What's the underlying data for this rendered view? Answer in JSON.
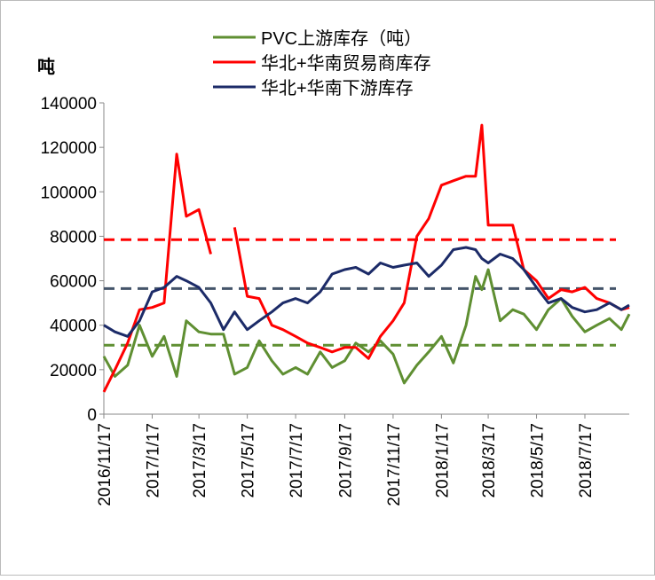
{
  "chart_data": {
    "type": "line",
    "y_label": "吨",
    "x": [
      "2016/11/17",
      "2016/12/1",
      "2016/12/17",
      "2017/1/1",
      "2017/1/17",
      "2017/2/1",
      "2017/2/17",
      "2017/3/1",
      "2017/3/17",
      "2017/4/1",
      "2017/4/17",
      "2017/5/1",
      "2017/5/17",
      "2017/6/1",
      "2017/6/17",
      "2017/7/1",
      "2017/7/17",
      "2017/8/1",
      "2017/8/17",
      "2017/9/1",
      "2017/9/17",
      "2017/10/1",
      "2017/10/17",
      "2017/11/1",
      "2017/11/17",
      "2017/12/1",
      "2017/12/17",
      "2018/1/1",
      "2018/1/17",
      "2018/2/1",
      "2018/2/17",
      "2018/3/1",
      "2018/3/9",
      "2018/3/17",
      "2018/4/1",
      "2018/4/17",
      "2018/5/1",
      "2018/5/17",
      "2018/6/1",
      "2018/6/17",
      "2018/7/1",
      "2018/7/17",
      "2018/8/1",
      "2018/8/17",
      "2018/9/1",
      "2018/9/11"
    ],
    "series": [
      {
        "name": "PVC上游库存（吨）",
        "color": "#5f8f32",
        "values": [
          26000,
          17000,
          22000,
          40000,
          26000,
          35000,
          17000,
          42000,
          37000,
          36000,
          36000,
          18000,
          21000,
          33000,
          24000,
          18000,
          21000,
          18000,
          28000,
          21000,
          24000,
          32000,
          28000,
          33000,
          27000,
          14000,
          22000,
          28000,
          35000,
          23000,
          40000,
          62000,
          56000,
          65000,
          42000,
          47000,
          45000,
          38000,
          47000,
          52000,
          44000,
          37000,
          40000,
          43000,
          38000,
          45000
        ]
      },
      {
        "name": "华北+华南贸易商库存",
        "color": "#ff0000",
        "values": [
          10000,
          20000,
          32000,
          47000,
          48000,
          50000,
          117000,
          89000,
          92000,
          72000,
          null,
          84000,
          53000,
          52000,
          40000,
          38000,
          35000,
          32000,
          30000,
          28000,
          30000,
          30000,
          25000,
          35000,
          42000,
          50000,
          80000,
          88000,
          103000,
          105000,
          107000,
          107000,
          130000,
          85000,
          85000,
          85000,
          65000,
          60000,
          52000,
          56000,
          55000,
          57000,
          52000,
          50000,
          47000,
          48000
        ]
      },
      {
        "name": "华北+华南下游库存",
        "color": "#1c2b68",
        "values": [
          40000,
          37000,
          35000,
          42000,
          55000,
          57000,
          62000,
          60000,
          57000,
          50000,
          38000,
          46000,
          38000,
          42000,
          46000,
          50000,
          52000,
          50000,
          55000,
          63000,
          65000,
          66000,
          63000,
          68000,
          66000,
          67000,
          68000,
          62000,
          67000,
          74000,
          75000,
          74000,
          70000,
          68000,
          72000,
          70000,
          65000,
          57000,
          50000,
          52000,
          48000,
          46000,
          47000,
          50000,
          47000,
          49000
        ]
      }
    ],
    "reference_lines": [
      {
        "value": 78500,
        "color": "#ff0000"
      },
      {
        "value": 56500,
        "color": "#44546a"
      },
      {
        "value": 31000,
        "color": "#5f8f32"
      }
    ],
    "xlim": [
      "2016/11/17",
      "2018/9/11"
    ],
    "xticks": [
      "2016/11/17",
      "2017/1/17",
      "2017/3/17",
      "2017/5/17",
      "2017/7/17",
      "2017/9/17",
      "2017/11/17",
      "2018/1/17",
      "2018/3/17",
      "2018/5/17",
      "2018/7/17"
    ],
    "ylim": [
      0,
      140000
    ],
    "yticks": [
      0,
      20000,
      40000,
      60000,
      80000,
      100000,
      120000,
      140000
    ]
  }
}
